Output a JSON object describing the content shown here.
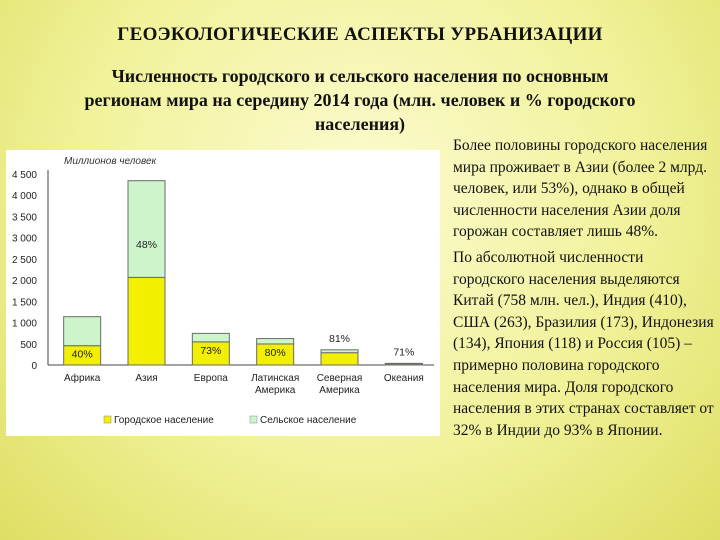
{
  "slide": {
    "title": "ГЕОЭКОЛОГИЧЕСКИЕ АСПЕКТЫ УРБАНИЗАЦИИ",
    "subtitle_lines": [
      "Численность городского и сельского населения по основным",
      "регионам мира на середину 2014 года (млн. человек и % городского",
      "населения)"
    ]
  },
  "text_panel": {
    "p1": "Более половины городского населения мира проживает в Азии (более 2 млрд. человек, или 53%), однако в общей численности населения Азии доля горожан составляет лишь 48%.",
    "p2": "По абсолютной численности городского населения выделяются Китай (758 млн. чел.), Индия (410), США (263), Бразилия (173), Индонезия (134), Япония (118) и Россия (105) – примерно половина городского населения мира. Доля городского населения в этих странах составляет от 32% в Индии до 93% в Японии."
  },
  "chart_data": {
    "type": "bar",
    "stacked": true,
    "ylabel": "Миллионов человек",
    "ylim": [
      0,
      4500
    ],
    "yticks": [
      0,
      500,
      1000,
      1500,
      2000,
      2500,
      3000,
      3500,
      4000,
      4500
    ],
    "categories": [
      "Африка",
      "Азия",
      "Европа",
      "Латинская Америка",
      "Северная Америка",
      "Океания"
    ],
    "category_lines": [
      [
        "Африка"
      ],
      [
        "Азия"
      ],
      [
        "Европа"
      ],
      [
        "Латинская",
        "Америка"
      ],
      [
        "Северная",
        "Америка"
      ],
      [
        "Океания"
      ]
    ],
    "series": [
      {
        "name": "Городское население",
        "color": "#f2ef00",
        "values": [
          455,
          2064,
          545,
          496,
          290,
          28
        ]
      },
      {
        "name": "Сельское население",
        "color": "#ccf5cc",
        "values": [
          683,
          2278,
          200,
          127,
          68,
          11
        ]
      }
    ],
    "data_labels": [
      "40%",
      "48%",
      "73%",
      "80%",
      "81%",
      "71%"
    ],
    "grid": false,
    "legend": "bottom",
    "border_color": "#6b6b6b"
  }
}
